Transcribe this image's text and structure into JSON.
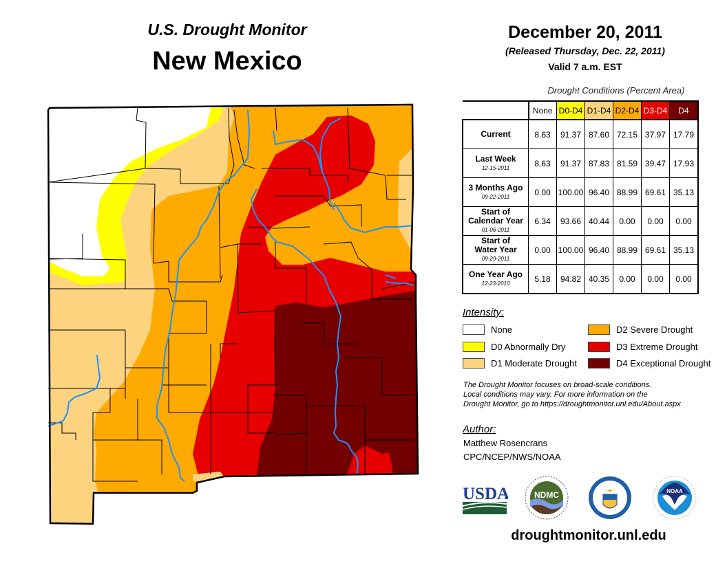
{
  "header": {
    "subtitle": "U.S. Drought Monitor",
    "region": "New Mexico",
    "date": "December 20, 2011",
    "released": "(Released Thursday, Dec. 22, 2011)",
    "valid": "Valid 7 a.m. EST"
  },
  "table": {
    "caption": "Drought Conditions (Percent Area)",
    "columns": [
      {
        "label": "None",
        "color": "#ffffff",
        "text_color": "#000000"
      },
      {
        "label": "D0-D4",
        "color": "#ffff00",
        "text_color": "#000000"
      },
      {
        "label": "D1-D4",
        "color": "#fcd37f",
        "text_color": "#000000"
      },
      {
        "label": "D2-D4",
        "color": "#ffaa00",
        "text_color": "#000000"
      },
      {
        "label": "D3-D4",
        "color": "#e60000",
        "text_color": "#ffffff"
      },
      {
        "label": "D4",
        "color": "#730000",
        "text_color": "#ffffff"
      }
    ],
    "rows": [
      {
        "label": "Current",
        "label2": "",
        "date": "",
        "values": [
          "8.63",
          "91.37",
          "87.60",
          "72.15",
          "37.97",
          "17.79"
        ]
      },
      {
        "label": "Last Week",
        "label2": "",
        "date": "12-15-2011",
        "values": [
          "8.63",
          "91.37",
          "87.83",
          "81.59",
          "39.47",
          "17.93"
        ]
      },
      {
        "label": "3 Months Ago",
        "label2": "",
        "date": "09-22-2011",
        "values": [
          "0.00",
          "100.00",
          "96.40",
          "88.99",
          "69.61",
          "35.13"
        ]
      },
      {
        "label": "Start of",
        "label2": "Calendar Year",
        "date": "01-06-2011",
        "values": [
          "6.34",
          "93.66",
          "40.44",
          "0.00",
          "0.00",
          "0.00"
        ]
      },
      {
        "label": "Start of",
        "label2": "Water Year",
        "date": "09-29-2011",
        "values": [
          "0.00",
          "100.00",
          "96.40",
          "88.99",
          "69.61",
          "35.13"
        ]
      },
      {
        "label": "One Year Ago",
        "label2": "",
        "date": "12-23-2010",
        "values": [
          "5.18",
          "94.82",
          "40.35",
          "0.00",
          "0.00",
          "0.00"
        ]
      }
    ]
  },
  "legend": {
    "title": "Intensity:",
    "items": [
      {
        "label": "None",
        "color": "#ffffff"
      },
      {
        "label": "D0 Abnormally Dry",
        "color": "#ffff00"
      },
      {
        "label": "D1 Moderate Drought",
        "color": "#fcd37f"
      },
      {
        "label": "D2 Severe Drought",
        "color": "#ffaa00"
      },
      {
        "label": "D3 Extreme Drought",
        "color": "#e60000"
      },
      {
        "label": "D4 Exceptional Drought",
        "color": "#730000"
      }
    ]
  },
  "note": {
    "line1": "The Drought Monitor focuses on broad-scale conditions.",
    "line2": "Local conditions may vary. For more information on the",
    "line3": "Drought Monitor, go to https://droughtmonitor.unl.edu/About.aspx"
  },
  "author": {
    "title": "Author:",
    "name": "Matthew Rosencrans",
    "org": "CPC/NCEP/NWS/NOAA"
  },
  "logos": {
    "usda": "USDA",
    "ndmc": "NDMC",
    "noaa": "NOAA"
  },
  "footer": {
    "url": "droughtmonitor.unl.edu"
  },
  "map": {
    "river_color": "#1e90ff"
  }
}
